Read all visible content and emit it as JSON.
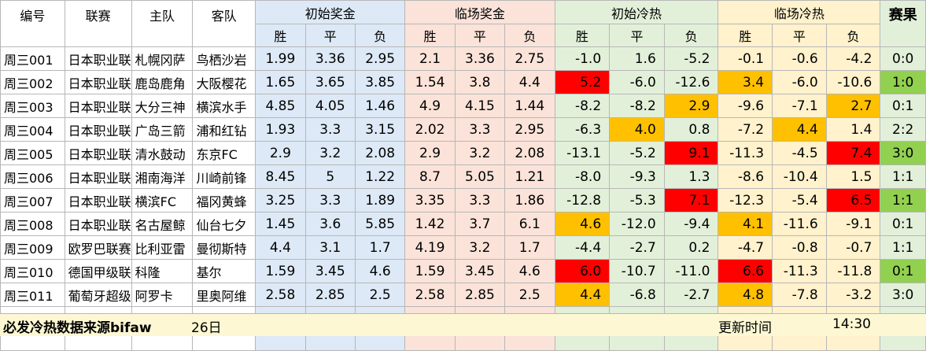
{
  "headers": {
    "id": "编号",
    "league": "联赛",
    "home": "主队",
    "away": "客队",
    "initial_prize": "初始奖金",
    "live_prize": "临场奖金",
    "initial_heat": "初始冷热",
    "live_heat": "临场冷热",
    "result": "赛果",
    "win": "胜",
    "draw": "平",
    "lose": "负"
  },
  "rows": [
    {
      "id": "周三001",
      "league": "日本职业联",
      "home": "札幌冈萨",
      "away": "鸟栖沙岩",
      "ip": [
        "1.99",
        "3.36",
        "2.95"
      ],
      "lp": [
        "2.1",
        "3.36",
        "2.75"
      ],
      "ih": [
        "-1.0",
        "1.6",
        "-5.2"
      ],
      "lh": [
        "-0.1",
        "-0.6",
        "-4.2"
      ],
      "result": "0:0",
      "ihc": [
        "",
        "",
        ""
      ],
      "lhc": [
        "",
        "",
        ""
      ],
      "rc": ""
    },
    {
      "id": "周三002",
      "league": "日本职业联",
      "home": "鹿岛鹿角",
      "away": "大阪樱花",
      "ip": [
        "1.65",
        "3.65",
        "3.85"
      ],
      "lp": [
        "1.54",
        "3.8",
        "4.4"
      ],
      "ih": [
        "5.2",
        "-6.0",
        "-12.6"
      ],
      "lh": [
        "3.4",
        "-6.0",
        "-10.6"
      ],
      "result": "1:0",
      "ihc": [
        "red",
        "",
        ""
      ],
      "lhc": [
        "orange",
        "",
        ""
      ],
      "rc": "lgreen"
    },
    {
      "id": "周三003",
      "league": "日本职业联",
      "home": "大分三神",
      "away": "横滨水手",
      "ip": [
        "4.85",
        "4.05",
        "1.46"
      ],
      "lp": [
        "4.9",
        "4.15",
        "1.44"
      ],
      "ih": [
        "-8.2",
        "-8.2",
        "2.9"
      ],
      "lh": [
        "-9.6",
        "-7.1",
        "2.7"
      ],
      "result": "0:1",
      "ihc": [
        "",
        "",
        "orange"
      ],
      "lhc": [
        "",
        "",
        "orange"
      ],
      "rc": ""
    },
    {
      "id": "周三004",
      "league": "日本职业联",
      "home": "广岛三箭",
      "away": "浦和红钻",
      "ip": [
        "1.93",
        "3.3",
        "3.15"
      ],
      "lp": [
        "2.02",
        "3.3",
        "2.95"
      ],
      "ih": [
        "-6.3",
        "4.0",
        "0.8"
      ],
      "lh": [
        "-7.2",
        "4.4",
        "1.4"
      ],
      "result": "2:2",
      "ihc": [
        "",
        "orange",
        ""
      ],
      "lhc": [
        "",
        "orange",
        ""
      ],
      "rc": ""
    },
    {
      "id": "周三005",
      "league": "日本职业联",
      "home": "清水鼓动",
      "away": "东京FC",
      "ip": [
        "2.9",
        "3.2",
        "2.08"
      ],
      "lp": [
        "2.9",
        "3.2",
        "2.08"
      ],
      "ih": [
        "-13.1",
        "-5.2",
        "9.1"
      ],
      "lh": [
        "-11.3",
        "-4.5",
        "7.4"
      ],
      "result": "3:0",
      "ihc": [
        "",
        "",
        "red"
      ],
      "lhc": [
        "",
        "",
        "red"
      ],
      "rc": "lgreen"
    },
    {
      "id": "周三006",
      "league": "日本职业联",
      "home": "湘南海洋",
      "away": "川崎前锋",
      "ip": [
        "8.45",
        "5",
        "1.22"
      ],
      "lp": [
        "8.7",
        "5.05",
        "1.21"
      ],
      "ih": [
        "-8.0",
        "-9.3",
        "1.3"
      ],
      "lh": [
        "-8.6",
        "-10.4",
        "1.5"
      ],
      "result": "1:1",
      "ihc": [
        "",
        "",
        ""
      ],
      "lhc": [
        "",
        "",
        ""
      ],
      "rc": ""
    },
    {
      "id": "周三007",
      "league": "日本职业联",
      "home": "横滨FC",
      "away": "福冈黄蜂",
      "ip": [
        "3.25",
        "3.3",
        "1.89"
      ],
      "lp": [
        "3.35",
        "3.3",
        "1.86"
      ],
      "ih": [
        "-12.8",
        "-5.3",
        "7.1"
      ],
      "lh": [
        "-12.3",
        "-5.4",
        "6.5"
      ],
      "result": "1:1",
      "ihc": [
        "",
        "",
        "red"
      ],
      "lhc": [
        "",
        "",
        "red"
      ],
      "rc": "lgreen"
    },
    {
      "id": "周三008",
      "league": "日本职业联",
      "home": "名古屋鲸",
      "away": "仙台七夕",
      "ip": [
        "1.45",
        "3.6",
        "5.85"
      ],
      "lp": [
        "1.42",
        "3.7",
        "6.1"
      ],
      "ih": [
        "4.6",
        "-12.0",
        "-9.4"
      ],
      "lh": [
        "4.1",
        "-11.6",
        "-9.1"
      ],
      "result": "0:1",
      "ihc": [
        "orange",
        "",
        ""
      ],
      "lhc": [
        "orange",
        "",
        ""
      ],
      "rc": ""
    },
    {
      "id": "周三009",
      "league": "欧罗巴联赛",
      "home": "比利亚雷",
      "away": "曼彻斯特",
      "ip": [
        "4.4",
        "3.1",
        "1.7"
      ],
      "lp": [
        "4.19",
        "3.2",
        "1.7"
      ],
      "ih": [
        "-4.4",
        "-2.7",
        "0.2"
      ],
      "lh": [
        "-4.7",
        "-0.8",
        "-0.7"
      ],
      "result": "1:1",
      "ihc": [
        "",
        "",
        ""
      ],
      "lhc": [
        "",
        "",
        ""
      ],
      "rc": ""
    },
    {
      "id": "周三010",
      "league": "德国甲级联",
      "home": "科隆",
      "away": "基尔",
      "ip": [
        "1.59",
        "3.45",
        "4.6"
      ],
      "lp": [
        "1.59",
        "3.45",
        "4.6"
      ],
      "ih": [
        "6.0",
        "-10.7",
        "-11.0"
      ],
      "lh": [
        "6.6",
        "-11.3",
        "-11.8"
      ],
      "result": "0:1",
      "ihc": [
        "red",
        "",
        ""
      ],
      "lhc": [
        "red",
        "",
        ""
      ],
      "rc": "lgreen"
    },
    {
      "id": "周三011",
      "league": "葡萄牙超级",
      "home": "阿罗卡",
      "away": "里奥阿维",
      "ip": [
        "2.58",
        "2.85",
        "2.5"
      ],
      "lp": [
        "2.58",
        "2.85",
        "2.5"
      ],
      "ih": [
        "4.4",
        "-6.8",
        "-2.7"
      ],
      "lh": [
        "4.8",
        "-7.8",
        "-3.2"
      ],
      "result": "3:0",
      "ihc": [
        "orange",
        "",
        ""
      ],
      "lhc": [
        "orange",
        "",
        ""
      ],
      "rc": ""
    }
  ],
  "footer": {
    "source": "必发冷热数据来源bifaw",
    "date": "26日",
    "update_label": "更新时间",
    "update_time": "14:30"
  }
}
